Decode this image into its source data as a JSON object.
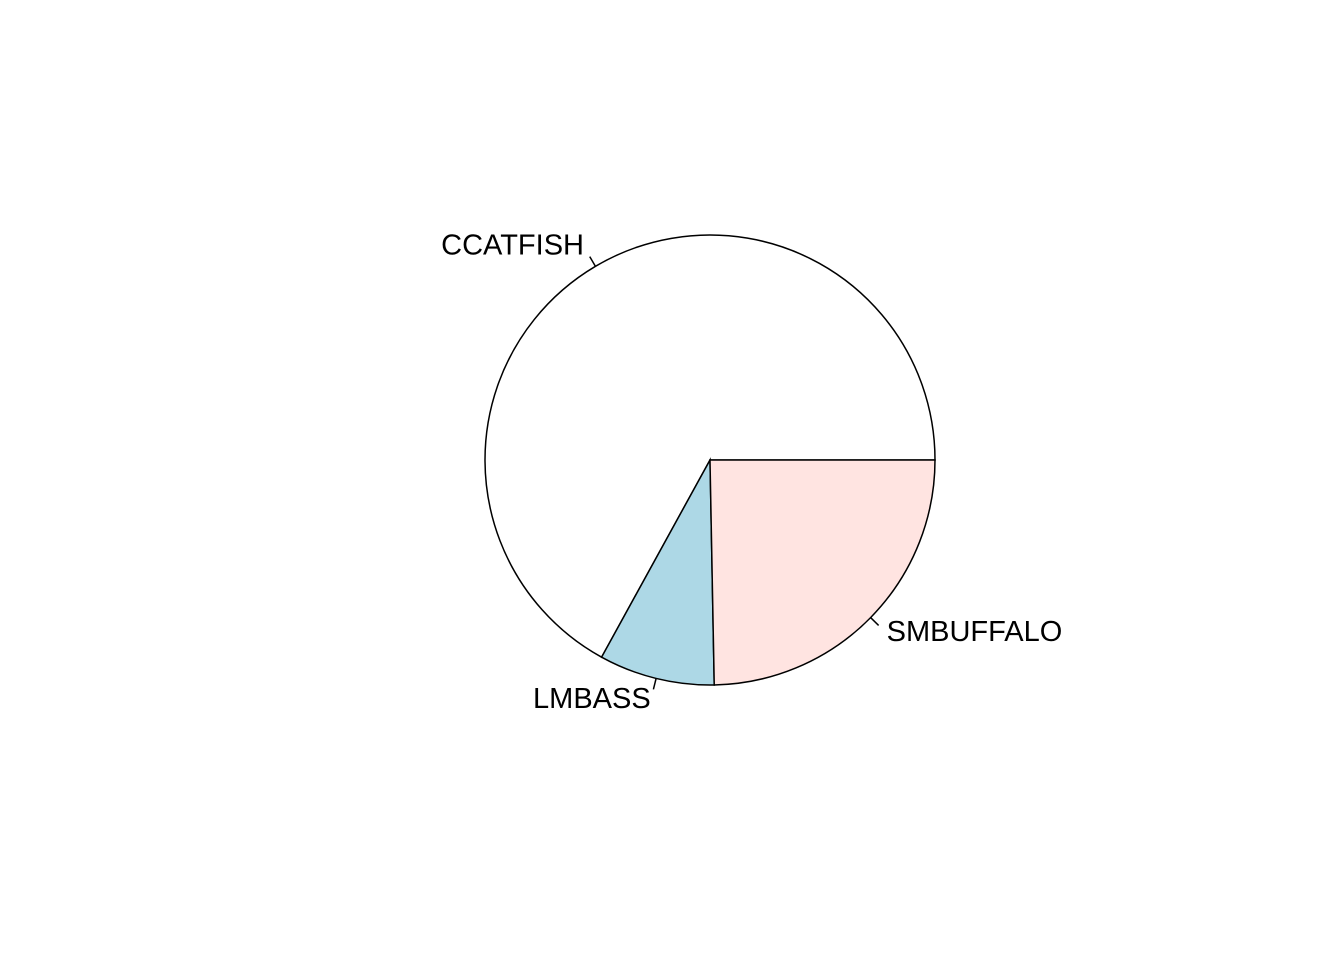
{
  "chart_data": {
    "type": "pie",
    "start_angle_deg": 0,
    "direction": "counterclockwise",
    "slices": [
      {
        "label": "CCATFISH",
        "value": 0.67,
        "color": "#FFFFFF"
      },
      {
        "label": "LMBASS",
        "value": 0.083,
        "color": "#ADD8E6"
      },
      {
        "label": "SMBUFFALO",
        "value": 0.247,
        "color": "#FFE4E1"
      }
    ]
  }
}
